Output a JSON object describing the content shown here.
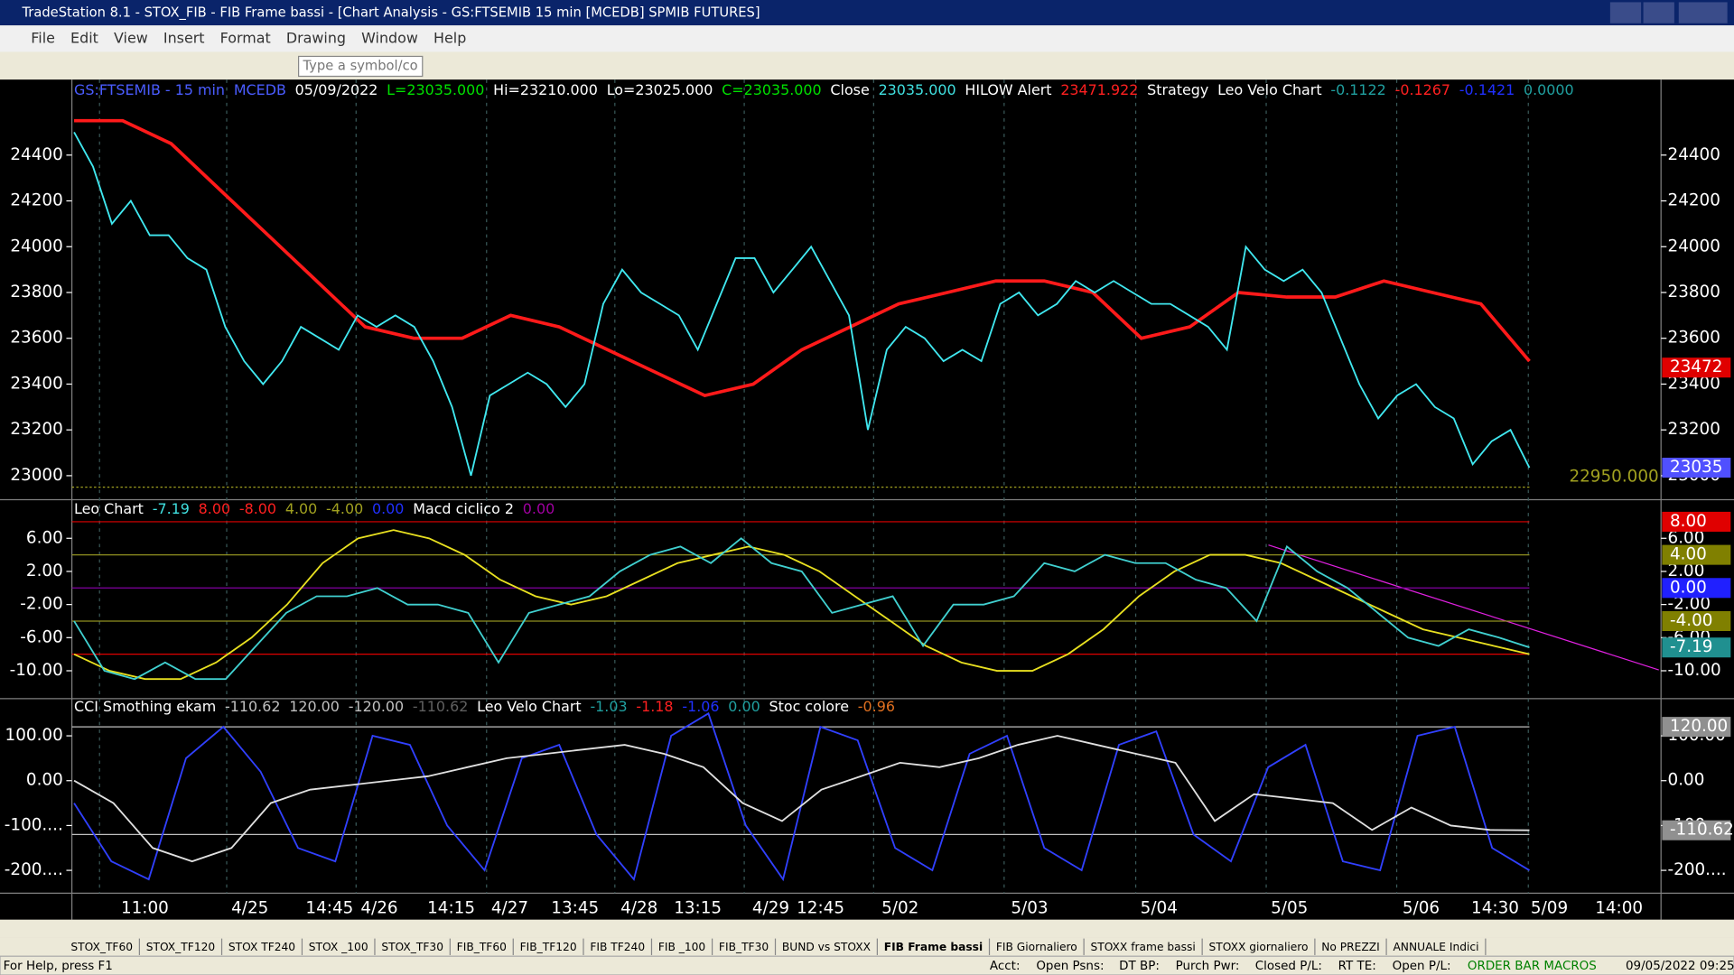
{
  "window": {
    "title": "TradeStation 8.1 - STOX_FIB - FIB Frame bassi - [Chart Analysis - GS:FTSEMIB 15 min  [MCEDB] SPMIB FUTURES]",
    "menu": [
      "File",
      "Edit",
      "View",
      "Insert",
      "Format",
      "Drawing",
      "Window",
      "Help"
    ],
    "symbol_box": "Type a symbol/co"
  },
  "panes": [
    {
      "header": [
        {
          "text": "GS:FTSEMIB - 15 min",
          "color": "#4a5cff"
        },
        {
          "text": "MCEDB",
          "color": "#4a5cff"
        },
        {
          "text": "05/09/2022",
          "color": "#ffffff"
        },
        {
          "text": "L=23035.000",
          "color": "#00e000"
        },
        {
          "text": "Hi=23210.000",
          "color": "#ffffff"
        },
        {
          "text": "Lo=23025.000",
          "color": "#ffffff"
        },
        {
          "text": "C=23035.000",
          "color": "#00e000"
        },
        {
          "text": "Close",
          "color": "#ffffff"
        },
        {
          "text": "23035.000",
          "color": "#40e0e0"
        },
        {
          "text": "HILOW Alert",
          "color": "#ffffff"
        },
        {
          "text": "23471.922",
          "color": "#ff2020"
        },
        {
          "text": "Strategy",
          "color": "#ffffff"
        },
        {
          "text": "Leo Velo Chart",
          "color": "#ffffff"
        },
        {
          "text": "-0.1122",
          "color": "#20a0a0"
        },
        {
          "text": "-0.1267",
          "color": "#ff2020"
        },
        {
          "text": "-0.1421",
          "color": "#2030ff"
        },
        {
          "text": "0.0000",
          "color": "#20a0a0"
        }
      ],
      "ylim": [
        22905,
        24720
      ],
      "yticks": [
        23000,
        23200,
        23400,
        23600,
        23800,
        24000,
        24200,
        24400
      ],
      "levels": [
        {
          "value": 22950,
          "label": "22950.000",
          "color": "#a0a020"
        }
      ],
      "series": [
        {
          "color": "#ff1a1a",
          "values": [
            24550,
            24550,
            24450,
            24250,
            24050,
            23850,
            23650,
            23600,
            23600,
            23700,
            23650,
            23550,
            23450,
            23350,
            23400,
            23550,
            23650,
            23750,
            23800,
            23850,
            23850,
            23800,
            23600,
            23650,
            23800,
            23780,
            23780,
            23850,
            23800,
            23750,
            23500
          ]
        },
        {
          "color": "#40e8f0",
          "values": [
            24500,
            24350,
            24100,
            24200,
            24050,
            24050,
            23950,
            23900,
            23650,
            23500,
            23400,
            23500,
            23650,
            23600,
            23550,
            23700,
            23650,
            23700,
            23650,
            23500,
            23300,
            23000,
            23350,
            23400,
            23450,
            23400,
            23300,
            23400,
            23750,
            23900,
            23800,
            23750,
            23700,
            23550,
            23750,
            23950,
            23950,
            23800,
            23900,
            24000,
            23850,
            23700,
            23200,
            23550,
            23650,
            23600,
            23500,
            23550,
            23500,
            23750,
            23800,
            23700,
            23750,
            23850,
            23800,
            23850,
            23800,
            23750,
            23750,
            23700,
            23650,
            23550,
            24000,
            23900,
            23850,
            23900,
            23800,
            23600,
            23400,
            23250,
            23350,
            23400,
            23300,
            23250,
            23050,
            23150,
            23200,
            23035
          ]
        }
      ],
      "value_boxes": [
        {
          "value": 23472,
          "label": "23472",
          "color": "#e00000"
        },
        {
          "value": 23035,
          "label": "23035",
          "color": "#5050ff"
        }
      ]
    },
    {
      "header": [
        {
          "text": "Leo Chart",
          "color": "#ffffff"
        },
        {
          "text": "-7.19",
          "color": "#40e0e0"
        },
        {
          "text": "8.00",
          "color": "#ff2020"
        },
        {
          "text": "-8.00",
          "color": "#ff2020"
        },
        {
          "text": "4.00",
          "color": "#a0a020"
        },
        {
          "text": "-4.00",
          "color": "#a0a020"
        },
        {
          "text": "0.00",
          "color": "#2030ff"
        },
        {
          "text": "Macd ciclico 2",
          "color": "#ffffff"
        },
        {
          "text": "0.00",
          "color": "#a000a0"
        }
      ],
      "ylim": [
        -13.1,
        10.4
      ],
      "yticks": [
        {
          "value": 6,
          "label": "6.00"
        },
        {
          "value": 2,
          "label": "2.00"
        },
        {
          "value": -2,
          "label": "-2.00"
        },
        {
          "value": -6,
          "label": "-6.00"
        },
        {
          "value": -10,
          "label": "-10.00"
        }
      ],
      "levels": [
        {
          "value": 8,
          "color": "#e00000"
        },
        {
          "value": 4,
          "color": "#909020"
        },
        {
          "value": 0,
          "color": "#8000a0"
        },
        {
          "value": -4,
          "color": "#909020"
        },
        {
          "value": -8,
          "color": "#e00000"
        }
      ],
      "series": [
        {
          "color": "#e8e020",
          "values": [
            -8,
            -10,
            -11,
            -11,
            -9,
            -6,
            -2,
            3,
            6,
            7,
            6,
            4,
            1,
            -1,
            -2,
            -1,
            1,
            3,
            4,
            5,
            4,
            2,
            -1,
            -4,
            -7,
            -9,
            -10,
            -10,
            -8,
            -5,
            -1,
            2,
            4,
            4,
            3,
            1,
            -1,
            -3,
            -5,
            -6,
            -7,
            -8
          ]
        },
        {
          "color": "#40d0d0",
          "values": [
            -4,
            -10,
            -11,
            -9,
            -11,
            -11,
            -7,
            -3,
            -1,
            -1,
            0,
            -2,
            -2,
            -3,
            -9,
            -3,
            -2,
            -1,
            2,
            4,
            5,
            3,
            6,
            3,
            2,
            -3,
            -2,
            -1,
            -7,
            -2,
            -2,
            -1,
            3,
            2,
            4,
            3,
            3,
            1,
            0,
            -4,
            5,
            2,
            0,
            -3,
            -6,
            -7,
            -5,
            -6,
            -7.19
          ]
        }
      ],
      "value_boxes": [
        {
          "value": 8,
          "label": "8.00",
          "color": "#e00000"
        },
        {
          "value": 4,
          "label": "4.00",
          "color": "#808000"
        },
        {
          "value": 0,
          "label": "0.00",
          "color": "#2020ff"
        },
        {
          "value": -4,
          "label": "-4.00",
          "color": "#808000"
        },
        {
          "value": -7.19,
          "label": "-7.19",
          "color": "#209090"
        }
      ]
    },
    {
      "header": [
        {
          "text": "CCI Smothing ekam",
          "color": "#ffffff"
        },
        {
          "text": "-110.62",
          "color": "#c0c0c0"
        },
        {
          "text": "120.00",
          "color": "#c0c0c0"
        },
        {
          "text": "-120.00",
          "color": "#c0c0c0"
        },
        {
          "text": "-110.62",
          "color": "#606060"
        },
        {
          "text": "Leo Velo Chart",
          "color": "#ffffff"
        },
        {
          "text": "-1.03",
          "color": "#20a0a0"
        },
        {
          "text": "-1.18",
          "color": "#ff2020"
        },
        {
          "text": "-1.06",
          "color": "#2030ff"
        },
        {
          "text": "0.00",
          "color": "#20a0a0"
        },
        {
          "text": "Stoc colore",
          "color": "#ffffff"
        },
        {
          "text": "-0.96",
          "color": "#e07020"
        }
      ],
      "ylim": [
        -246,
        178
      ],
      "yticks": [
        {
          "value": 100,
          "label": "100.00"
        },
        {
          "value": 0,
          "label": "0.00"
        },
        {
          "value": -100,
          "label": "-100...."
        },
        {
          "value": -200,
          "label": "-200...."
        }
      ],
      "levels": [
        {
          "value": 120,
          "color": "#c0c0c0"
        },
        {
          "value": -120,
          "color": "#c0c0c0"
        }
      ],
      "series": [
        {
          "color": "#3040ff",
          "values": [
            -50,
            -180,
            -220,
            50,
            120,
            20,
            -150,
            -180,
            100,
            80,
            -100,
            -200,
            50,
            80,
            -120,
            -220,
            100,
            150,
            -100,
            -220,
            120,
            90,
            -150,
            -200,
            60,
            100,
            -150,
            -200,
            80,
            110,
            -120,
            -180,
            30,
            80,
            -180,
            -200,
            100,
            120,
            -150,
            -200
          ]
        },
        {
          "color": "#e0e0e0",
          "values": [
            0,
            -50,
            -150,
            -180,
            -150,
            -50,
            -20,
            -10,
            0,
            10,
            30,
            50,
            60,
            70,
            80,
            60,
            30,
            -50,
            -90,
            -20,
            10,
            40,
            30,
            50,
            80,
            100,
            80,
            60,
            40,
            -90,
            -30,
            -40,
            -50,
            -110,
            -60,
            -100,
            -110,
            -110.62
          ]
        }
      ],
      "value_boxes": [
        {
          "value": 120,
          "label": "120.00",
          "color": "#909090"
        },
        {
          "value": -110.62,
          "label": "-110.62",
          "color": "#909090"
        }
      ]
    }
  ],
  "x_labels": [
    "11:00",
    "4/25",
    "14:45",
    "4/26",
    "14:15",
    "4/27",
    "13:45",
    "4/28",
    "13:15",
    "4/29",
    "12:45",
    "5/02",
    "5/03",
    "5/04",
    "5/05",
    "5/06",
    "14:30",
    "5/09",
    "14:00"
  ],
  "tabs": [
    "STOX_TF60",
    "STOX_TF120",
    "STOX TF240",
    "STOX _100",
    "STOX_TF30",
    "FIB_TF60",
    "FIB_TF120",
    "FIB TF240",
    "FIB _100",
    "FIB_TF30",
    "BUND vs STOXX",
    "FIB Frame bassi",
    "FIB Giornaliero",
    "STOXX frame bassi",
    "STOXX giornaliero",
    "No PREZZI",
    "ANNUALE Indici"
  ],
  "status": [
    "For Help, press F1",
    "Acct:",
    "Open Psns:",
    "DT BP:",
    "Purch Pwr:",
    "Closed P/L:",
    "RT TE:",
    "Open P/L:",
    "ORDER BAR MACROS",
    "09/05/2022 09:25"
  ]
}
